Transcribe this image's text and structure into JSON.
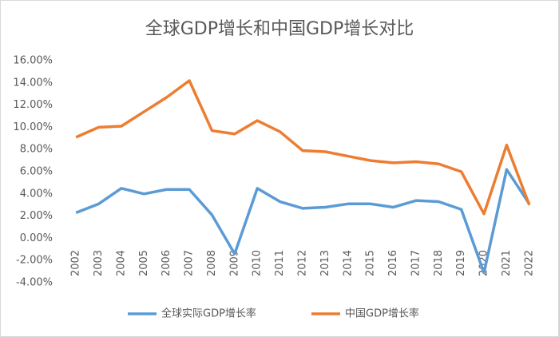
{
  "chart_data": {
    "type": "line",
    "title": "全球GDP增长和中国GDP增长对比",
    "categories": [
      "2002",
      "2003",
      "2004",
      "2005",
      "2006",
      "2007",
      "2008",
      "2009",
      "2010",
      "2011",
      "2012",
      "2013",
      "2014",
      "2015",
      "2016",
      "2017",
      "2018",
      "2019",
      "2020",
      "2021",
      "2022"
    ],
    "series": [
      {
        "name": "全球实际GDP增长率",
        "color": "#5b9bd5",
        "values": [
          2.3,
          3.1,
          4.5,
          4.0,
          4.4,
          4.4,
          2.1,
          -1.4,
          4.5,
          3.3,
          2.7,
          2.8,
          3.1,
          3.1,
          2.8,
          3.4,
          3.3,
          2.6,
          -3.1,
          6.2,
          3.1
        ]
      },
      {
        "name": "中国GDP增长率",
        "color": "#ed7d31",
        "values": [
          9.1,
          10.0,
          10.1,
          11.4,
          12.7,
          14.2,
          9.7,
          9.4,
          10.6,
          9.6,
          7.9,
          7.8,
          7.4,
          7.0,
          6.8,
          6.9,
          6.7,
          6.0,
          2.2,
          8.4,
          3.0
        ]
      }
    ],
    "ylim": [
      -4,
      16
    ],
    "yticks": [
      {
        "value": -4,
        "label": "-4.00%"
      },
      {
        "value": -2,
        "label": "-2.00%"
      },
      {
        "value": 0,
        "label": "0.00%"
      },
      {
        "value": 2,
        "label": "2.00%"
      },
      {
        "value": 4,
        "label": "4.00%"
      },
      {
        "value": 6,
        "label": "6.00%"
      },
      {
        "value": 8,
        "label": "8.00%"
      },
      {
        "value": 10,
        "label": "10.00%"
      },
      {
        "value": 12,
        "label": "12.00%"
      },
      {
        "value": 14,
        "label": "14.00%"
      },
      {
        "value": 16,
        "label": "16.00%"
      }
    ],
    "grid": false,
    "legend": "bottom"
  }
}
